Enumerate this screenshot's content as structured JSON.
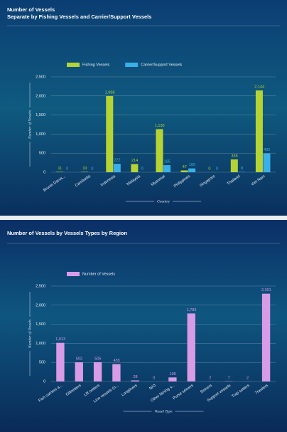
{
  "chart_data": [
    {
      "type": "bar",
      "title": "Number of Vessels",
      "subtitle": "Separate by Fishing Vessels and Carrier/Support Vessels",
      "categories": [
        "Brunei Darus...",
        "Cambodia",
        "Indonesia",
        "Malaysia",
        "Myanmar",
        "Philippines",
        "Singapore",
        "Thailand",
        "Viet Nam"
      ],
      "series": [
        {
          "name": "Fishing Vessels",
          "color": "#b5d334",
          "values": [
            11,
            10,
            1998,
            214,
            1130,
            47,
            0,
            336,
            2144
          ],
          "value_labels": [
            "11",
            "10",
            "1,998",
            "214",
            "1,130",
            "47",
            "0",
            "336",
            "2,144"
          ]
        },
        {
          "name": "Carrier/Support Vessels",
          "color": "#3ab0e8",
          "values": [
            0,
            0,
            222,
            0,
            185,
            100,
            0,
            8,
            492
          ],
          "value_labels": [
            "0",
            "0",
            "222",
            "0",
            "185",
            "100",
            "0",
            "8",
            "492"
          ]
        }
      ],
      "ylim": [
        0,
        2500
      ],
      "yticks": [
        0,
        500,
        {
          "value": 1000,
          "label": "1,000"
        },
        {
          "value": 1500,
          "label": "1,500"
        },
        {
          "value": 2000,
          "label": "2,000"
        },
        {
          "value": 2500,
          "label": "2,500"
        }
      ],
      "y_label": "Number of Vessels",
      "x_label": "Country",
      "grid": true
    },
    {
      "type": "bar",
      "title": "Number of Vessels by Vessels Types by Region",
      "categories": [
        "Fish carriers a...",
        "Gillnetters",
        "Lift netters",
        "Line vessels (n...",
        "Longliners",
        "N/O",
        "Other fishing v...",
        "Purse seiners",
        "Seiners",
        "Support vessels",
        "Trap setters",
        "Trawlers"
      ],
      "series": [
        {
          "name": "Number of Vessels",
          "color": "#d89be6",
          "values": [
            1013,
            502,
            505,
            455,
            28,
            0,
            106,
            1783,
            2,
            7,
            2,
            2301
          ],
          "value_labels": [
            "1,013",
            "502",
            "505",
            "455",
            "28",
            "0",
            "106",
            "1,783",
            "2",
            "7",
            "2",
            "2,301"
          ]
        }
      ],
      "ylim": [
        0,
        2500
      ],
      "yticks": [
        0,
        500,
        {
          "value": 1000,
          "label": "1,000"
        },
        {
          "value": 1500,
          "label": "1,500"
        },
        {
          "value": 2000,
          "label": "2,000"
        },
        {
          "value": 2500,
          "label": "2,500"
        }
      ],
      "y_label": "Number of Vessels",
      "x_label": "Vessel Type",
      "grid": true
    }
  ]
}
